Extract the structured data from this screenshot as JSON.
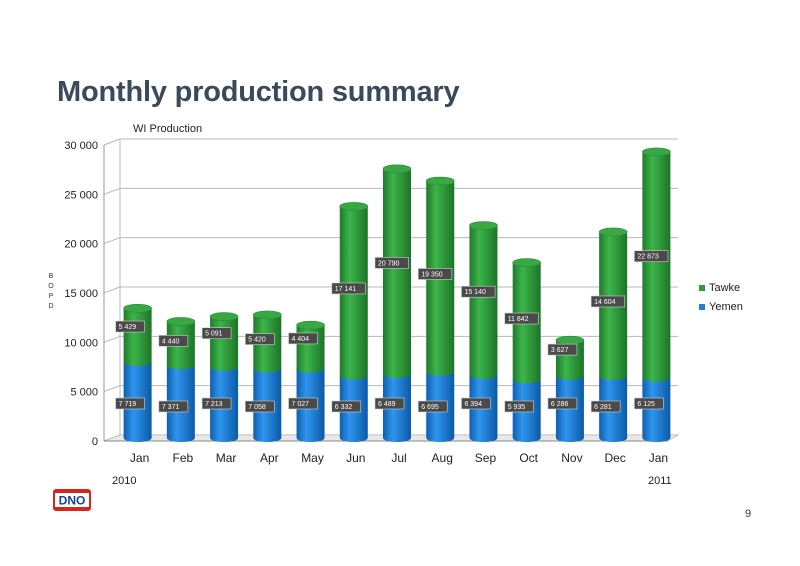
{
  "page": {
    "title": "Monthly production summary",
    "page_number": "9",
    "logo_text": "DNO"
  },
  "chart_data": {
    "type": "bar",
    "stacked": true,
    "title": "WI Production",
    "ylabel": "BOPD",
    "ylim": [
      0,
      30000
    ],
    "yticks": [
      0,
      5000,
      10000,
      15000,
      20000,
      25000,
      30000
    ],
    "ytick_labels": [
      "0",
      "5 000",
      "10 000",
      "15 000",
      "20 000",
      "25 000",
      "30 000"
    ],
    "categories": [
      "Jan",
      "Feb",
      "Mar",
      "Apr",
      "May",
      "Jun",
      "Jul",
      "Aug",
      "Sep",
      "Oct",
      "Nov",
      "Dec",
      "Jan"
    ],
    "year_labels": {
      "start": "2010",
      "end": "2011"
    },
    "grid": true,
    "legend_position": "right",
    "series": [
      {
        "name": "Yemen",
        "color": "#1e7fd6",
        "values": [
          7719,
          7371,
          7213,
          7058,
          7027,
          6332,
          6489,
          6695,
          6394,
          5935,
          6286,
          6281,
          6125
        ],
        "labels": [
          "7 719",
          "7 371",
          "7 213",
          "7 058",
          "7 027",
          "6 332",
          "6 489",
          "6 695",
          "6 394",
          "5 935",
          "6 286",
          "6 281",
          "6 125"
        ]
      },
      {
        "name": "Tawke",
        "color": "#2e9a3a",
        "values": [
          5429,
          4440,
          5091,
          5420,
          4404,
          17141,
          20790,
          19350,
          15140,
          11842,
          3627,
          14604,
          22873
        ],
        "labels": [
          "5 429",
          "4 440",
          "5 091",
          "5 420",
          "4 404",
          "17 141",
          "20 790",
          "19 350",
          "15 140",
          "11 842",
          "3 627",
          "14 604",
          "22 873"
        ]
      }
    ]
  }
}
